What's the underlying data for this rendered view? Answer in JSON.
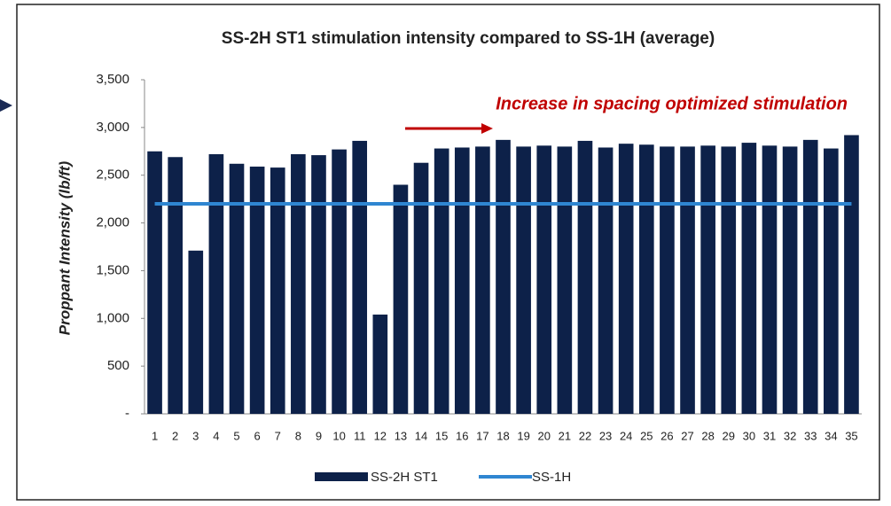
{
  "chart_data": {
    "type": "bar",
    "title": "SS-2H ST1 stimulation intensity compared to SS-1H (average)",
    "annotation": "Increase in spacing optimized stimulation",
    "y_label": "Proppant Intensity (lb/ft)",
    "categories": [
      "1",
      "2",
      "3",
      "4",
      "5",
      "6",
      "7",
      "8",
      "9",
      "10",
      "11",
      "12",
      "13",
      "14",
      "15",
      "16",
      "17",
      "18",
      "19",
      "20",
      "21",
      "22",
      "23",
      "24",
      "25",
      "26",
      "27",
      "28",
      "29",
      "30",
      "31",
      "32",
      "33",
      "34",
      "35"
    ],
    "series": [
      {
        "name": "SS-2H ST1",
        "type": "bar",
        "color": "#0d2149",
        "values": [
          2750,
          2690,
          1710,
          2720,
          2620,
          2590,
          2580,
          2720,
          2710,
          2770,
          2860,
          1040,
          2400,
          2630,
          2780,
          2790,
          2800,
          2870,
          2800,
          2810,
          2800,
          2860,
          2790,
          2830,
          2820,
          2800,
          2800,
          2810,
          2800,
          2840,
          2810,
          2800,
          2870,
          2780,
          2920
        ]
      },
      {
        "name": "SS-1H",
        "type": "line",
        "color": "#2f86d1",
        "values": [
          2200,
          2200,
          2200,
          2200,
          2200,
          2200,
          2200,
          2200,
          2200,
          2200,
          2200,
          2200,
          2200,
          2200,
          2200,
          2200,
          2200,
          2200,
          2200,
          2200,
          2200,
          2200,
          2200,
          2200,
          2200,
          2200,
          2200,
          2200,
          2200,
          2200,
          2200,
          2200,
          2200,
          2200,
          2200
        ]
      }
    ],
    "ylim": [
      0,
      3500
    ],
    "yticks": [
      {
        "value": 0,
        "label": "-"
      },
      500,
      {
        "value": 1000,
        "label": "1,000"
      },
      {
        "value": 1500,
        "label": "1,500"
      },
      {
        "value": 2000,
        "label": "2,000"
      },
      {
        "value": 2500,
        "label": "2,500"
      },
      {
        "value": 3000,
        "label": "3,000"
      },
      {
        "value": 3500,
        "label": "3,500"
      }
    ],
    "legend": "bottom"
  }
}
